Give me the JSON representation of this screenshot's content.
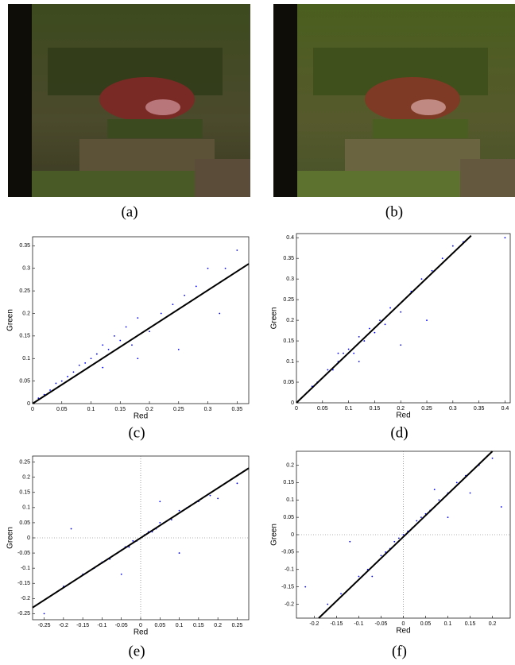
{
  "captions": [
    "(a)",
    "(b)"
  ],
  "chart_data": [
    {
      "type": "scatter",
      "caption": "(c)",
      "x_label": "Red",
      "y_label": "Green",
      "point_color": "#0000ff",
      "line_color": "#000000",
      "zero_lines": false,
      "xlim": [
        0,
        0.37
      ],
      "ylim": [
        0,
        0.37
      ],
      "xticks": [
        0,
        0.05,
        0.1,
        0.15,
        0.2,
        0.25,
        0.3,
        0.35
      ],
      "yticks": [
        0,
        0.05,
        0.1,
        0.15,
        0.2,
        0.25,
        0.3,
        0.35
      ],
      "x": [
        0.01,
        0.02,
        0.03,
        0.04,
        0.05,
        0.06,
        0.07,
        0.08,
        0.09,
        0.1,
        0.11,
        0.12,
        0.13,
        0.14,
        0.15,
        0.16,
        0.17,
        0.18,
        0.2,
        0.22,
        0.24,
        0.26,
        0.28,
        0.3,
        0.33,
        0.35,
        0.12,
        0.18,
        0.25,
        0.32
      ],
      "values": [
        0.012,
        0.02,
        0.03,
        0.045,
        0.05,
        0.06,
        0.07,
        0.085,
        0.09,
        0.1,
        0.11,
        0.13,
        0.12,
        0.15,
        0.14,
        0.17,
        0.13,
        0.19,
        0.16,
        0.2,
        0.22,
        0.24,
        0.26,
        0.3,
        0.3,
        0.34,
        0.08,
        0.1,
        0.12,
        0.2
      ],
      "fit": {
        "x": [
          0,
          0.37
        ],
        "values": [
          0,
          0.31
        ]
      }
    },
    {
      "type": "scatter",
      "caption": "(d)",
      "x_label": "Red",
      "y_label": "Green",
      "point_color": "#0000ff",
      "line_color": "#000000",
      "zero_lines": false,
      "xlim": [
        0,
        0.41
      ],
      "ylim": [
        0,
        0.41
      ],
      "xticks": [
        0,
        0.05,
        0.1,
        0.15,
        0.2,
        0.25,
        0.3,
        0.35,
        0.4
      ],
      "yticks": [
        0,
        0.05,
        0.1,
        0.15,
        0.2,
        0.25,
        0.3,
        0.35,
        0.4
      ],
      "x": [
        0.01,
        0.02,
        0.03,
        0.04,
        0.05,
        0.06,
        0.07,
        0.08,
        0.09,
        0.1,
        0.11,
        0.12,
        0.13,
        0.14,
        0.15,
        0.16,
        0.17,
        0.18,
        0.2,
        0.22,
        0.24,
        0.26,
        0.28,
        0.3,
        0.32,
        0.12,
        0.2,
        0.25,
        0.4,
        0.08
      ],
      "values": [
        0.012,
        0.025,
        0.04,
        0.05,
        0.06,
        0.08,
        0.08,
        0.1,
        0.12,
        0.13,
        0.12,
        0.16,
        0.15,
        0.18,
        0.17,
        0.2,
        0.19,
        0.23,
        0.22,
        0.27,
        0.3,
        0.32,
        0.35,
        0.38,
        0.39,
        0.1,
        0.14,
        0.2,
        0.4,
        0.12
      ],
      "fit": {
        "x": [
          0,
          0.335
        ],
        "values": [
          0,
          0.405
        ]
      }
    },
    {
      "type": "scatter",
      "caption": "(e)",
      "x_label": "Red",
      "y_label": "Green",
      "point_color": "#0000ff",
      "line_color": "#000000",
      "zero_lines": true,
      "xlim": [
        -0.28,
        0.28
      ],
      "ylim": [
        -0.27,
        0.27
      ],
      "xticks": [
        -0.25,
        -0.2,
        -0.15,
        -0.1,
        -0.05,
        0,
        0.05,
        0.1,
        0.15,
        0.2,
        0.25
      ],
      "yticks": [
        -0.25,
        -0.2,
        -0.15,
        -0.1,
        -0.05,
        0,
        0.05,
        0.1,
        0.15,
        0.2,
        0.25
      ],
      "x": [
        -0.25,
        -0.2,
        -0.15,
        -0.12,
        -0.1,
        -0.08,
        -0.06,
        -0.05,
        -0.04,
        -0.03,
        -0.02,
        -0.01,
        0,
        0.01,
        0.02,
        0.03,
        0.04,
        0.05,
        0.06,
        0.08,
        0.1,
        0.12,
        0.15,
        0.18,
        0.2,
        0.25,
        -0.18,
        0.1,
        0.05,
        -0.05
      ],
      "values": [
        -0.25,
        -0.16,
        -0.12,
        -0.1,
        -0.08,
        -0.07,
        -0.05,
        -0.04,
        -0.03,
        -0.03,
        -0.01,
        -0.01,
        0,
        0.01,
        0.02,
        0.02,
        0.03,
        0.05,
        0.05,
        0.06,
        0.09,
        0.1,
        0.12,
        0.14,
        0.13,
        0.18,
        0.03,
        -0.05,
        0.12,
        -0.12
      ],
      "fit": {
        "x": [
          -0.28,
          0.28
        ],
        "values": [
          -0.23,
          0.23
        ]
      }
    },
    {
      "type": "scatter",
      "caption": "(f)",
      "x_label": "Red",
      "y_label": "Green",
      "point_color": "#0000ff",
      "line_color": "#000000",
      "zero_lines": true,
      "xlim": [
        -0.24,
        0.24
      ],
      "ylim": [
        -0.24,
        0.24
      ],
      "xticks": [
        -0.2,
        -0.15,
        -0.1,
        -0.05,
        0,
        0.05,
        0.1,
        0.15,
        0.2
      ],
      "yticks": [
        -0.2,
        -0.15,
        -0.1,
        -0.05,
        0,
        0.05,
        0.1,
        0.15,
        0.2
      ],
      "x": [
        -0.22,
        -0.17,
        -0.14,
        -0.1,
        -0.08,
        -0.06,
        -0.05,
        -0.04,
        -0.03,
        -0.02,
        -0.01,
        0,
        0.01,
        0.02,
        0.03,
        0.04,
        0.05,
        0.06,
        0.08,
        0.1,
        0.12,
        0.14,
        0.17,
        0.2,
        -0.12,
        0.1,
        0.07,
        -0.07,
        0.15,
        0.22
      ],
      "values": [
        -0.15,
        -0.2,
        -0.17,
        -0.12,
        -0.1,
        -0.08,
        -0.06,
        -0.05,
        -0.04,
        -0.02,
        -0.01,
        0,
        0.01,
        0.02,
        0.04,
        0.05,
        0.06,
        0.07,
        0.1,
        0.12,
        0.15,
        0.17,
        0.2,
        0.22,
        -0.02,
        0.05,
        0.13,
        -0.12,
        0.12,
        0.08
      ],
      "fit": {
        "x": [
          -0.19,
          0.2
        ],
        "values": [
          -0.24,
          0.24
        ]
      }
    }
  ]
}
